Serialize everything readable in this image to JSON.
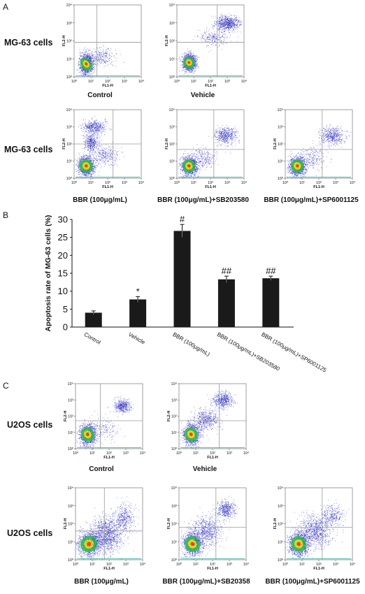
{
  "panels": {
    "a": "A",
    "b": "B",
    "c": "C"
  },
  "flow_axis": {
    "xlabel": "FL1-H",
    "ylabel": "FL2-H",
    "ticks": [
      "10⁰",
      "10¹",
      "10²",
      "10³",
      "10⁴"
    ]
  },
  "panel_a": {
    "row_label": "MG-63 cells",
    "plots": [
      {
        "caption": "Control"
      },
      {
        "caption": "Vehicle"
      },
      {
        "caption": "BBR (100μg/mL)"
      },
      {
        "caption": "BBR (100μg/mL)+SB203580"
      },
      {
        "caption": "BBR (100μg/mL)+SP6001125"
      }
    ]
  },
  "panel_c": {
    "row_label": "U2OS cells",
    "plots": [
      {
        "caption": "Control"
      },
      {
        "caption": "Vehicle"
      },
      {
        "caption": "BBR (100μg/mL)"
      },
      {
        "caption": "BBR (100μg/mL)+SB20358"
      },
      {
        "caption": "BBR (100μg/mL)+SP6001125"
      }
    ]
  },
  "chart_data": {
    "type": "bar",
    "ylabel": "Apoptosis rate of MG-63 cells (%)",
    "categories": [
      "Control",
      "Vehicle",
      "BBR (100μg/mL)",
      "BBR (100μg/mL)+SB203580",
      "BBR (100μg/mL)+SP6001125"
    ],
    "values": [
      4.0,
      7.7,
      26.8,
      13.3,
      13.6
    ],
    "errors": [
      0.5,
      0.8,
      1.8,
      0.9,
      0.6
    ],
    "significance": [
      "",
      "*",
      "#",
      "##",
      "##"
    ],
    "ylim": [
      0,
      30
    ],
    "yticks": [
      0,
      5,
      10,
      15,
      20,
      25,
      30
    ],
    "bar_color": "#1a1a1a"
  },
  "colors": {
    "dots": "#1d1db8",
    "core_green": "#33c24e",
    "core_yellow": "#f2d81e",
    "core_red": "#e53a1a",
    "gate": "#9a9a9a"
  }
}
